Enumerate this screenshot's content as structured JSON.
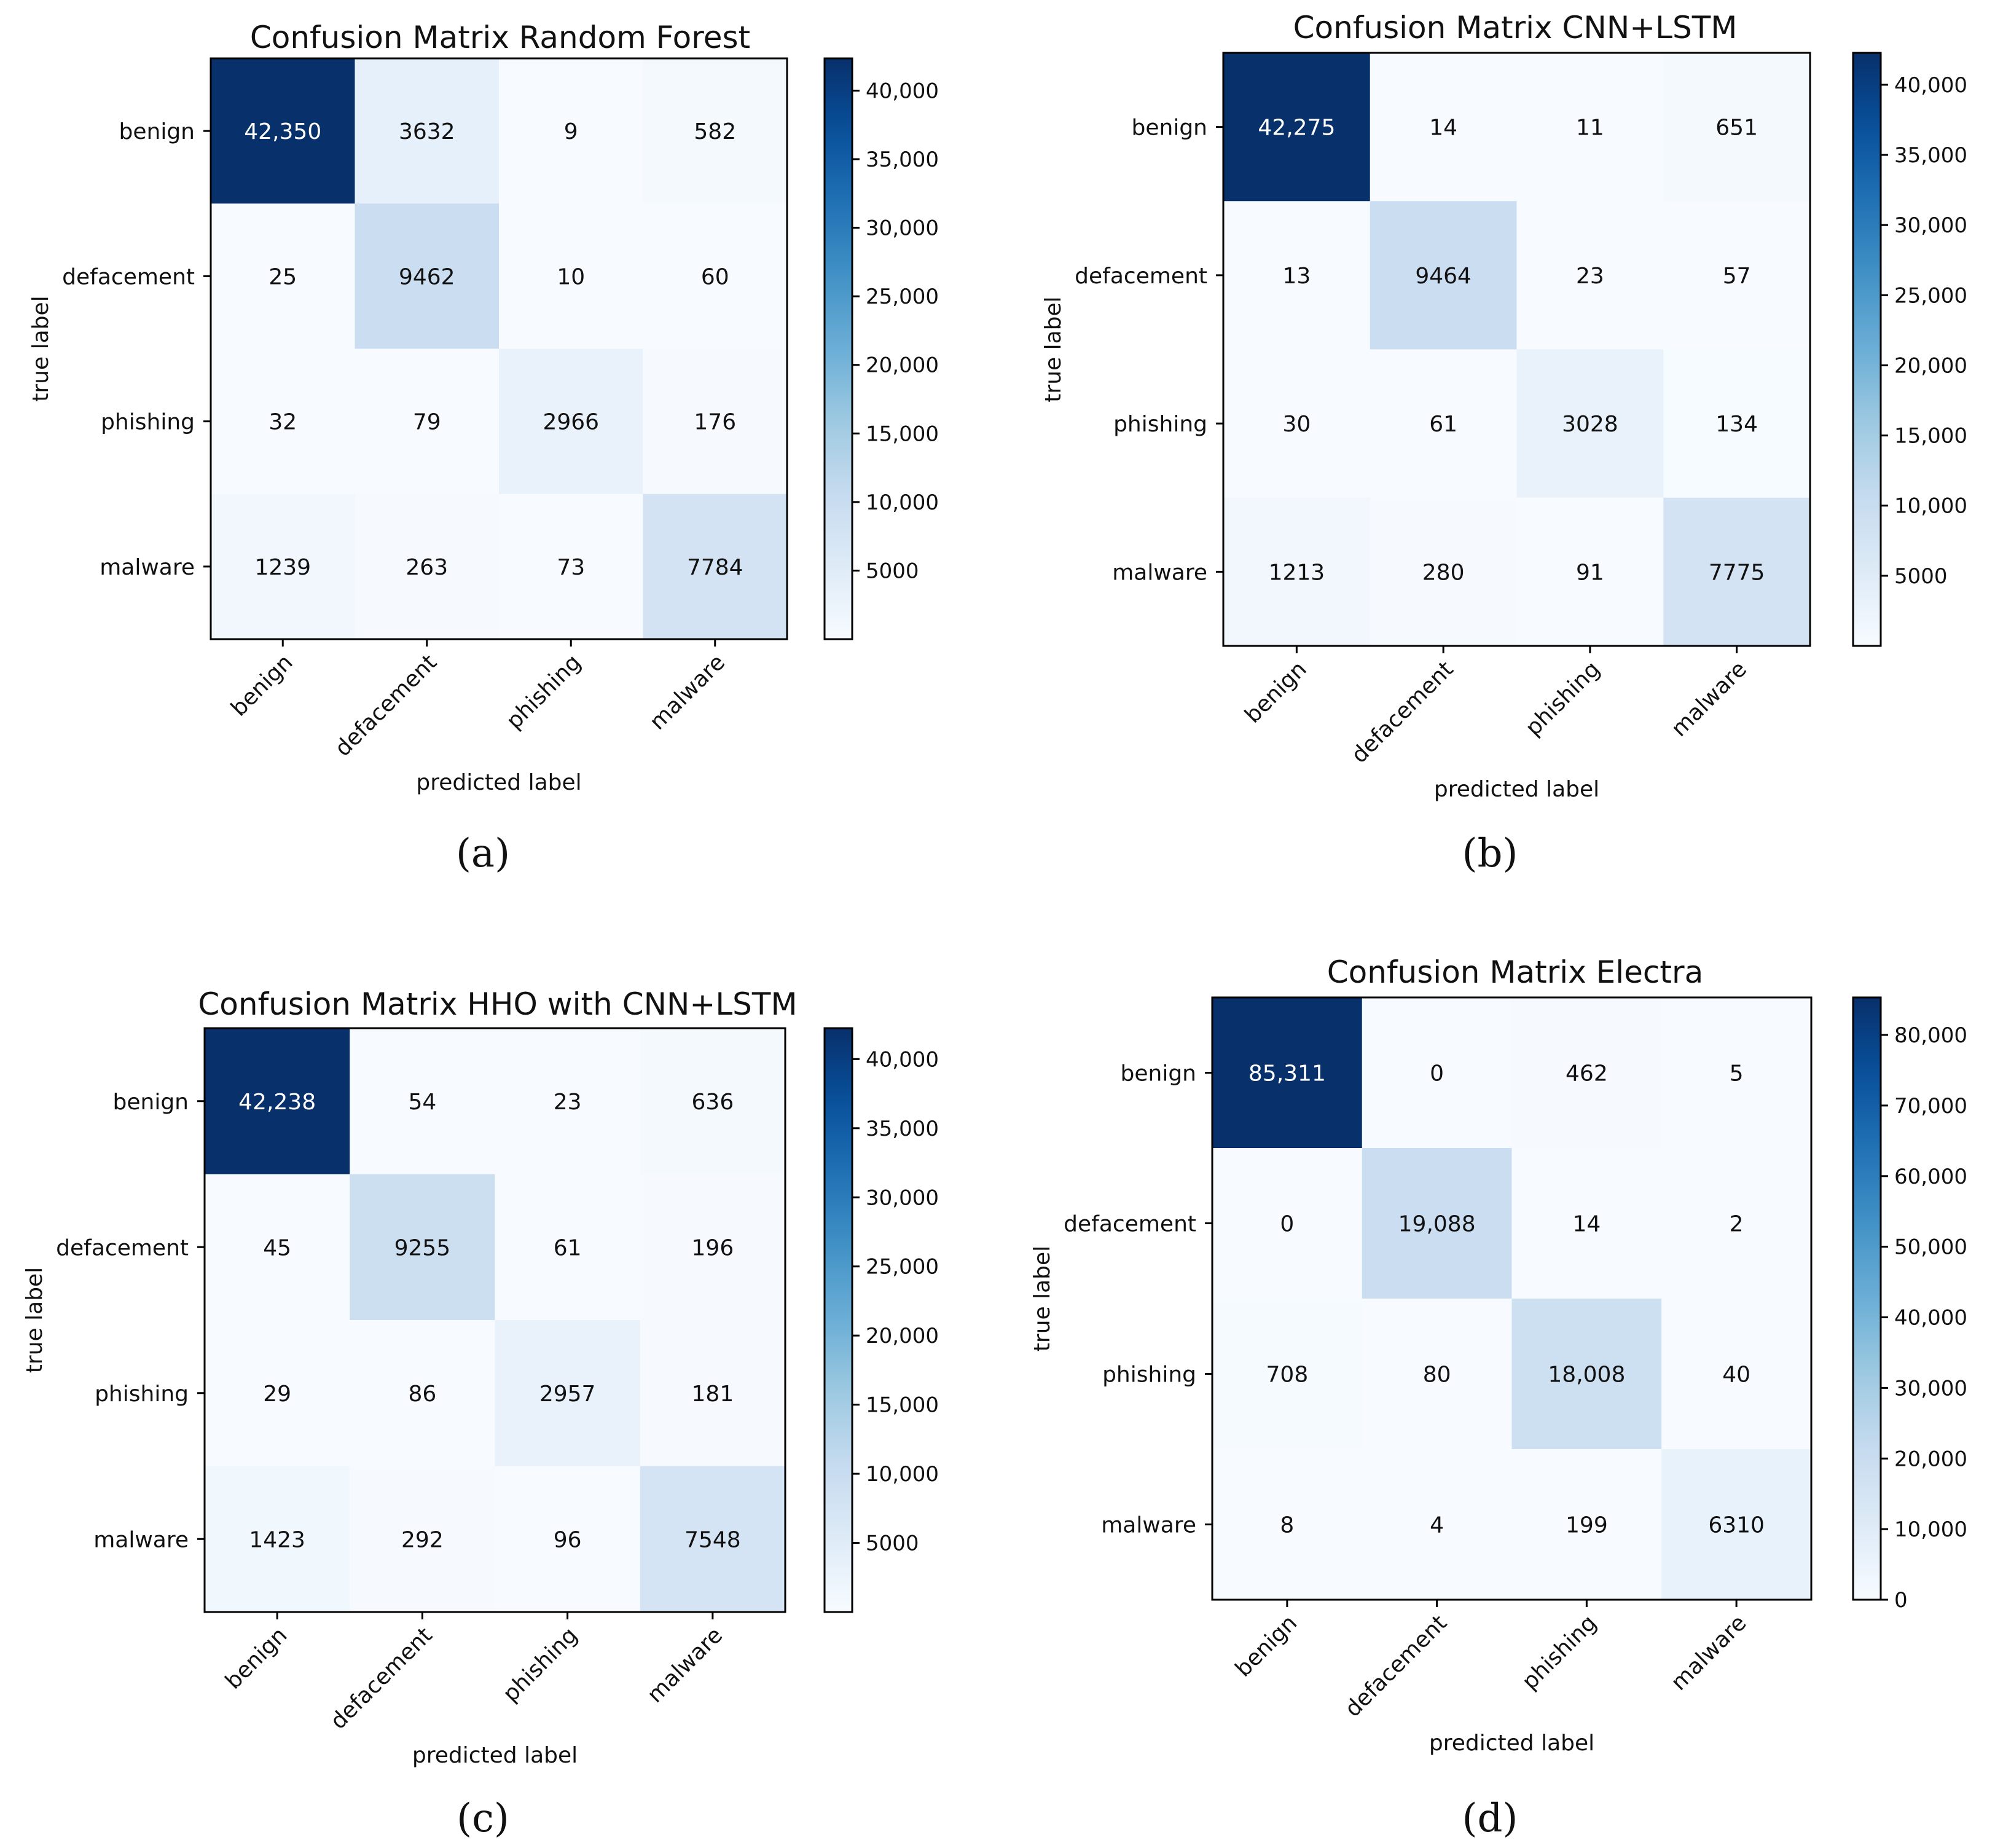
{
  "figure": {
    "panels": [
      {
        "caption": "(a)"
      },
      {
        "caption": "(b)"
      },
      {
        "caption": "(c)"
      },
      {
        "caption": "(d)"
      }
    ]
  },
  "chart_data": [
    {
      "type": "heatmap",
      "title": "Confusion Matrix Random Forest",
      "xlabel": "predicted label",
      "ylabel": "true label",
      "categories": [
        "benign",
        "defacement",
        "phishing",
        "malware"
      ],
      "values": [
        [
          42350,
          3632,
          9,
          582
        ],
        [
          25,
          9462,
          10,
          60
        ],
        [
          32,
          79,
          2966,
          176
        ],
        [
          1239,
          263,
          73,
          7784
        ]
      ],
      "cell_labels": [
        [
          "42,350",
          "3632",
          "9",
          "582"
        ],
        [
          "25",
          "9462",
          "10",
          "60"
        ],
        [
          "32",
          "79",
          "2966",
          "176"
        ],
        [
          "1239",
          "263",
          "73",
          "7784"
        ]
      ],
      "colorbar": {
        "vmin": 0,
        "vmax": 42350,
        "ticks": [
          5000,
          10000,
          15000,
          20000,
          25000,
          30000,
          35000,
          40000
        ],
        "tick_labels": [
          "5000",
          "10,000",
          "15,000",
          "20,000",
          "25,000",
          "30,000",
          "35,000",
          "40,000"
        ]
      },
      "colormap": "Blues"
    },
    {
      "type": "heatmap",
      "title": "Confusion Matrix CNN+LSTM",
      "xlabel": "predicted label",
      "ylabel": "true label",
      "categories": [
        "benign",
        "defacement",
        "phishing",
        "malware"
      ],
      "values": [
        [
          42275,
          14,
          11,
          651
        ],
        [
          13,
          9464,
          23,
          57
        ],
        [
          30,
          61,
          3028,
          134
        ],
        [
          1213,
          280,
          91,
          7775
        ]
      ],
      "cell_labels": [
        [
          "42,275",
          "14",
          "11",
          "651"
        ],
        [
          "13",
          "9464",
          "23",
          "57"
        ],
        [
          "30",
          "61",
          "3028",
          "134"
        ],
        [
          "1213",
          "280",
          "91",
          "7775"
        ]
      ],
      "colorbar": {
        "vmin": 0,
        "vmax": 42275,
        "ticks": [
          5000,
          10000,
          15000,
          20000,
          25000,
          30000,
          35000,
          40000
        ],
        "tick_labels": [
          "5000",
          "10,000",
          "15,000",
          "20,000",
          "25,000",
          "30,000",
          "35,000",
          "40,000"
        ]
      },
      "colormap": "Blues"
    },
    {
      "type": "heatmap",
      "title": "Confusion Matrix HHO with CNN+LSTM",
      "xlabel": "predicted label",
      "ylabel": "true label",
      "categories": [
        "benign",
        "defacement",
        "phishing",
        "malware"
      ],
      "values": [
        [
          42238,
          54,
          23,
          636
        ],
        [
          45,
          9255,
          61,
          196
        ],
        [
          29,
          86,
          2957,
          181
        ],
        [
          1423,
          292,
          96,
          7548
        ]
      ],
      "cell_labels": [
        [
          "42,238",
          "54",
          "23",
          "636"
        ],
        [
          "45",
          "9255",
          "61",
          "196"
        ],
        [
          "29",
          "86",
          "2957",
          "181"
        ],
        [
          "1423",
          "292",
          "96",
          "7548"
        ]
      ],
      "colorbar": {
        "vmin": 0,
        "vmax": 42238,
        "ticks": [
          5000,
          10000,
          15000,
          20000,
          25000,
          30000,
          35000,
          40000
        ],
        "tick_labels": [
          "5000",
          "10,000",
          "15,000",
          "20,000",
          "25,000",
          "30,000",
          "35,000",
          "40,000"
        ]
      },
      "colormap": "Blues"
    },
    {
      "type": "heatmap",
      "title": "Confusion Matrix Electra",
      "xlabel": "predicted label",
      "ylabel": "true label",
      "categories": [
        "benign",
        "defacement",
        "phishing",
        "malware"
      ],
      "values": [
        [
          85311,
          0,
          462,
          5
        ],
        [
          0,
          19088,
          14,
          2
        ],
        [
          708,
          80,
          18008,
          40
        ],
        [
          8,
          4,
          199,
          6310
        ]
      ],
      "cell_labels": [
        [
          "85,311",
          "0",
          "462",
          "5"
        ],
        [
          "0",
          "19,088",
          "14",
          "2"
        ],
        [
          "708",
          "80",
          "18,008",
          "40"
        ],
        [
          "8",
          "4",
          "199",
          "6310"
        ]
      ],
      "colorbar": {
        "vmin": 0,
        "vmax": 85311,
        "ticks": [
          0,
          10000,
          20000,
          30000,
          40000,
          50000,
          60000,
          70000,
          80000
        ],
        "tick_labels": [
          "0",
          "10,000",
          "20,000",
          "30,000",
          "40,000",
          "50,000",
          "60,000",
          "70,000",
          "80,000"
        ]
      },
      "colormap": "Blues"
    }
  ]
}
